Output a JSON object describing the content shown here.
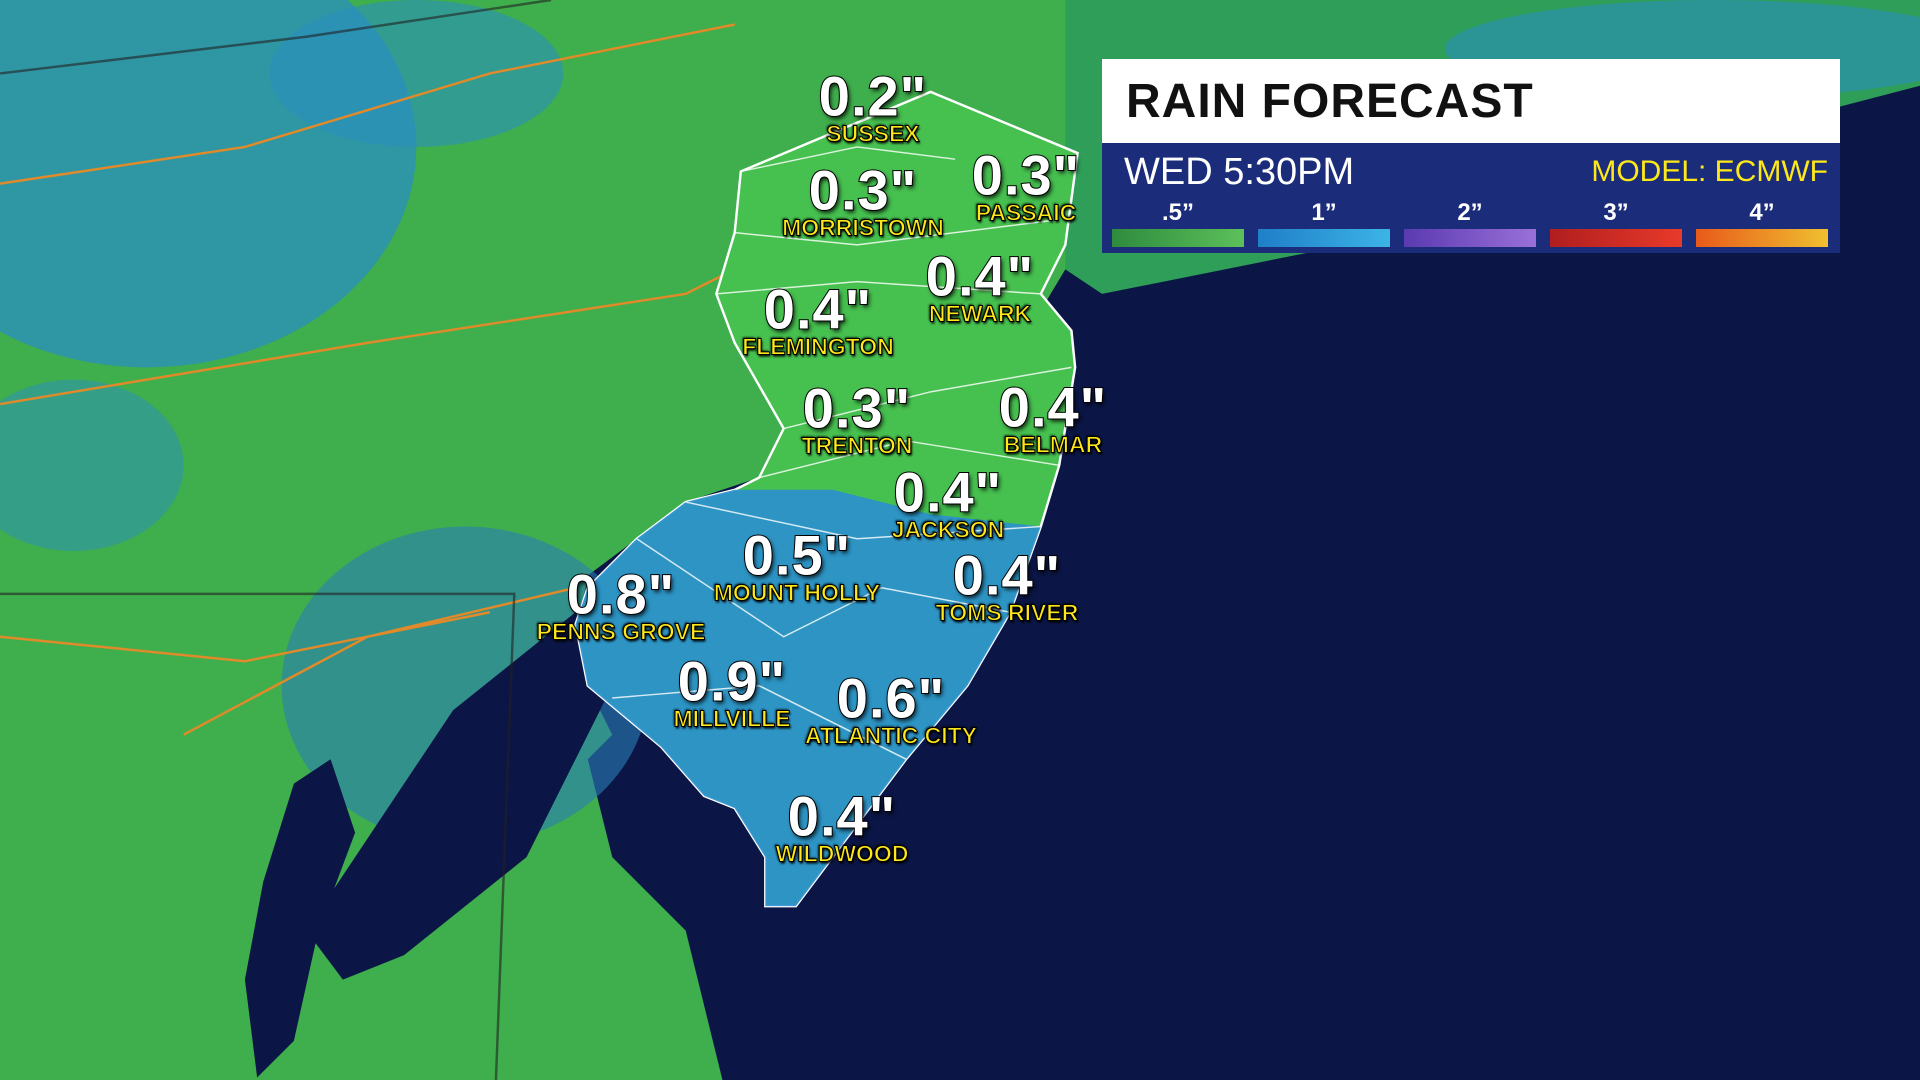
{
  "header": {
    "title": "RAIN FORECAST",
    "time": "WED 5:30PM",
    "model": "MODEL: ECMWF"
  },
  "legend": [
    ".5”",
    "1”",
    "2”",
    "3”",
    "4”"
  ],
  "locations": [
    {
      "name": "SUSSEX",
      "amount": "0.2\""
    },
    {
      "name": "MORRISTOWN",
      "amount": "0.3\""
    },
    {
      "name": "PASSAIC",
      "amount": "0.3\""
    },
    {
      "name": "NEWARK",
      "amount": "0.4\""
    },
    {
      "name": "FLEMINGTON",
      "amount": "0.4\""
    },
    {
      "name": "TRENTON",
      "amount": "0.3\""
    },
    {
      "name": "BELMAR",
      "amount": "0.4\""
    },
    {
      "name": "JACKSON",
      "amount": "0.4\""
    },
    {
      "name": "MOUNT HOLLY",
      "amount": "0.5\""
    },
    {
      "name": "TOMS RIVER",
      "amount": "0.4\""
    },
    {
      "name": "PENNS GROVE",
      "amount": "0.8\""
    },
    {
      "name": "MILLVILLE",
      "amount": "0.9\""
    },
    {
      "name": "ATLANTIC CITY",
      "amount": "0.6\""
    },
    {
      "name": "WILDWOOD",
      "amount": "0.4\""
    }
  ]
}
